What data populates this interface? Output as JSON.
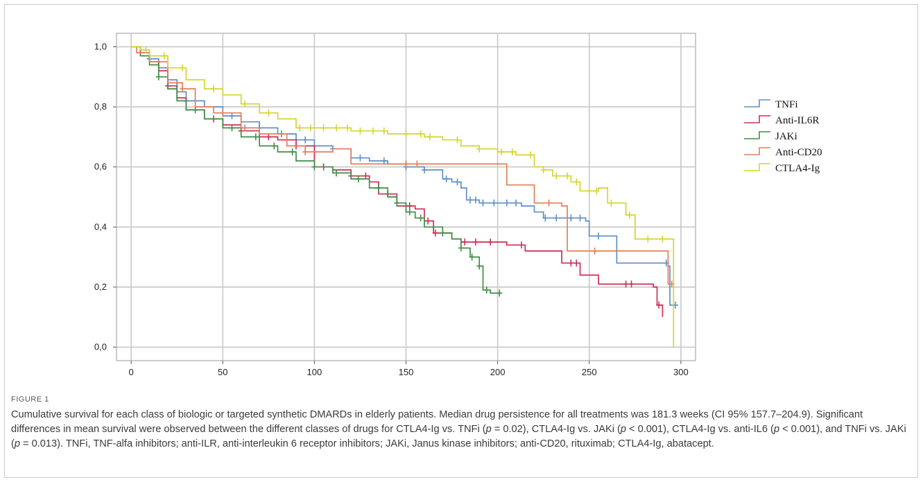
{
  "figure": {
    "label": "FIGURE 1",
    "caption_parts": [
      {
        "text": "Cumulative survival for each class of biologic or targeted synthetic DMARDs in elderly patients. Median drug persistence for all treatments was 181.3 weeks (CI 95% 157.7–204.9). Significant differences in mean survival were observed between the different classes of drugs for CTLA4-Ig vs. TNFi (",
        "italic": false
      },
      {
        "text": "p",
        "italic": true
      },
      {
        "text": " = 0.02), CTLA4-Ig vs. JAKi (",
        "italic": false
      },
      {
        "text": "p",
        "italic": true
      },
      {
        "text": " < 0.001), CTLA4-Ig vs. anti-IL6 (",
        "italic": false
      },
      {
        "text": "p",
        "italic": true
      },
      {
        "text": " < 0.001), and TNFi vs. JAKi (",
        "italic": false
      },
      {
        "text": "p",
        "italic": true
      },
      {
        "text": " = 0.013). TNFi, TNF-alfa inhibitors; anti-ILR, anti-interleukin 6 receptor inhibitors; JAKi, Janus kinase inhibitors; anti-CD20, rituximab; CTLA4-Ig, abatacept.",
        "italic": false
      }
    ]
  },
  "chart_data": {
    "type": "line",
    "title": "",
    "xlabel": "",
    "ylabel": "",
    "step": true,
    "grid": true,
    "legend_position": "right",
    "xlim": [
      -8,
      308
    ],
    "ylim": [
      -0.045,
      1.045
    ],
    "x_ticks": [
      0,
      50,
      100,
      150,
      200,
      250,
      300
    ],
    "x_tick_labels": [
      "0",
      "50",
      "100",
      "150",
      "200",
      "250",
      "300"
    ],
    "y_ticks": [
      0.0,
      0.2,
      0.4,
      0.6,
      0.8,
      1.0
    ],
    "y_tick_labels": [
      "0,0",
      "0,2",
      "0,4",
      "0,6",
      "0,8",
      "1,0"
    ],
    "series": [
      {
        "name": "TNFi",
        "color": "#5b8fc9",
        "points": [
          [
            0,
            1.0
          ],
          [
            5,
            0.99
          ],
          [
            10,
            0.96
          ],
          [
            15,
            0.93
          ],
          [
            20,
            0.89
          ],
          [
            25,
            0.85
          ],
          [
            30,
            0.82
          ],
          [
            40,
            0.8
          ],
          [
            50,
            0.77
          ],
          [
            60,
            0.75
          ],
          [
            70,
            0.73
          ],
          [
            80,
            0.71
          ],
          [
            90,
            0.69
          ],
          [
            100,
            0.67
          ],
          [
            110,
            0.66
          ],
          [
            120,
            0.63
          ],
          [
            130,
            0.62
          ],
          [
            140,
            0.61
          ],
          [
            150,
            0.6
          ],
          [
            160,
            0.59
          ],
          [
            170,
            0.56
          ],
          [
            175,
            0.55
          ],
          [
            180,
            0.53
          ],
          [
            183,
            0.49
          ],
          [
            190,
            0.48
          ],
          [
            205,
            0.48
          ],
          [
            213,
            0.47
          ],
          [
            220,
            0.45
          ],
          [
            225,
            0.43
          ],
          [
            248,
            0.42
          ],
          [
            250,
            0.37
          ],
          [
            265,
            0.28
          ],
          [
            293,
            0.27
          ],
          [
            294,
            0.14
          ],
          [
            297,
            0.14
          ]
        ],
        "censor": [
          10,
          30,
          55,
          70,
          82,
          95,
          110,
          125,
          138,
          150,
          160,
          172,
          178,
          185,
          188,
          192,
          198,
          205,
          210,
          226,
          232,
          240,
          245,
          255,
          292,
          297
        ]
      },
      {
        "name": "Anti-IL6R",
        "color": "#cc2e56",
        "points": [
          [
            0,
            1.0
          ],
          [
            5,
            0.98
          ],
          [
            10,
            0.95
          ],
          [
            15,
            0.92
          ],
          [
            20,
            0.87
          ],
          [
            25,
            0.83
          ],
          [
            30,
            0.79
          ],
          [
            40,
            0.76
          ],
          [
            50,
            0.74
          ],
          [
            60,
            0.72
          ],
          [
            70,
            0.7
          ],
          [
            80,
            0.69
          ],
          [
            90,
            0.67
          ],
          [
            100,
            0.6
          ],
          [
            110,
            0.59
          ],
          [
            120,
            0.57
          ],
          [
            130,
            0.55
          ],
          [
            135,
            0.51
          ],
          [
            145,
            0.47
          ],
          [
            155,
            0.46
          ],
          [
            160,
            0.42
          ],
          [
            165,
            0.38
          ],
          [
            175,
            0.36
          ],
          [
            180,
            0.35
          ],
          [
            205,
            0.34
          ],
          [
            215,
            0.32
          ],
          [
            235,
            0.28
          ],
          [
            245,
            0.24
          ],
          [
            255,
            0.21
          ],
          [
            285,
            0.2
          ],
          [
            287,
            0.14
          ],
          [
            290,
            0.1
          ]
        ],
        "censor": [
          20,
          45,
          60,
          75,
          90,
          105,
          120,
          128,
          140,
          152,
          162,
          166,
          182,
          188,
          196,
          213,
          240,
          243,
          270,
          273,
          288
        ]
      },
      {
        "name": "JAKi",
        "color": "#3e8e47",
        "points": [
          [
            0,
            1.0
          ],
          [
            5,
            0.97
          ],
          [
            10,
            0.94
          ],
          [
            15,
            0.9
          ],
          [
            20,
            0.86
          ],
          [
            25,
            0.82
          ],
          [
            30,
            0.79
          ],
          [
            40,
            0.76
          ],
          [
            50,
            0.73
          ],
          [
            60,
            0.7
          ],
          [
            70,
            0.67
          ],
          [
            80,
            0.65
          ],
          [
            90,
            0.62
          ],
          [
            100,
            0.6
          ],
          [
            110,
            0.58
          ],
          [
            120,
            0.56
          ],
          [
            130,
            0.53
          ],
          [
            140,
            0.5
          ],
          [
            145,
            0.48
          ],
          [
            150,
            0.45
          ],
          [
            155,
            0.43
          ],
          [
            160,
            0.4
          ],
          [
            170,
            0.38
          ],
          [
            175,
            0.36
          ],
          [
            180,
            0.33
          ],
          [
            185,
            0.3
          ],
          [
            190,
            0.27
          ],
          [
            192,
            0.19
          ],
          [
            196,
            0.18
          ],
          [
            202,
            0.18
          ]
        ],
        "censor": [
          15,
          35,
          55,
          68,
          78,
          88,
          100,
          112,
          124,
          135,
          145,
          152,
          158,
          170,
          180,
          186,
          190,
          194,
          201
        ]
      },
      {
        "name": "Anti-CD20",
        "color": "#e37f57",
        "points": [
          [
            0,
            1.0
          ],
          [
            3,
            0.98
          ],
          [
            10,
            0.95
          ],
          [
            20,
            0.88
          ],
          [
            28,
            0.86
          ],
          [
            35,
            0.8
          ],
          [
            45,
            0.78
          ],
          [
            60,
            0.73
          ],
          [
            70,
            0.71
          ],
          [
            85,
            0.67
          ],
          [
            95,
            0.65
          ],
          [
            110,
            0.66
          ],
          [
            120,
            0.61
          ],
          [
            140,
            0.61
          ],
          [
            180,
            0.61
          ],
          [
            204,
            0.61
          ],
          [
            205,
            0.54
          ],
          [
            220,
            0.48
          ],
          [
            235,
            0.47
          ],
          [
            238,
            0.32
          ],
          [
            260,
            0.32
          ],
          [
            292,
            0.32
          ],
          [
            293,
            0.21
          ],
          [
            296,
            0.21
          ]
        ],
        "censor": [
          28,
          50,
          62,
          95,
          150,
          156,
          228,
          253,
          295
        ]
      },
      {
        "name": "CTLA4-Ig",
        "color": "#d6d42f",
        "points": [
          [
            0,
            1.0
          ],
          [
            5,
            0.99
          ],
          [
            10,
            0.97
          ],
          [
            20,
            0.93
          ],
          [
            30,
            0.89
          ],
          [
            40,
            0.86
          ],
          [
            50,
            0.84
          ],
          [
            60,
            0.81
          ],
          [
            70,
            0.78
          ],
          [
            80,
            0.76
          ],
          [
            90,
            0.73
          ],
          [
            100,
            0.73
          ],
          [
            120,
            0.72
          ],
          [
            140,
            0.71
          ],
          [
            160,
            0.7
          ],
          [
            170,
            0.69
          ],
          [
            180,
            0.67
          ],
          [
            190,
            0.66
          ],
          [
            200,
            0.65
          ],
          [
            210,
            0.64
          ],
          [
            220,
            0.6
          ],
          [
            225,
            0.59
          ],
          [
            230,
            0.57
          ],
          [
            240,
            0.55
          ],
          [
            245,
            0.52
          ],
          [
            255,
            0.53
          ],
          [
            260,
            0.48
          ],
          [
            270,
            0.44
          ],
          [
            275,
            0.36
          ],
          [
            285,
            0.36
          ],
          [
            295,
            0.36
          ],
          [
            296,
            0.0
          ]
        ],
        "censor": [
          8,
          18,
          28,
          45,
          62,
          75,
          92,
          98,
          105,
          112,
          118,
          125,
          132,
          138,
          150,
          158,
          163,
          178,
          190,
          202,
          208,
          218,
          225,
          232,
          238,
          243,
          250,
          254,
          262,
          272,
          282,
          290
        ]
      }
    ]
  }
}
